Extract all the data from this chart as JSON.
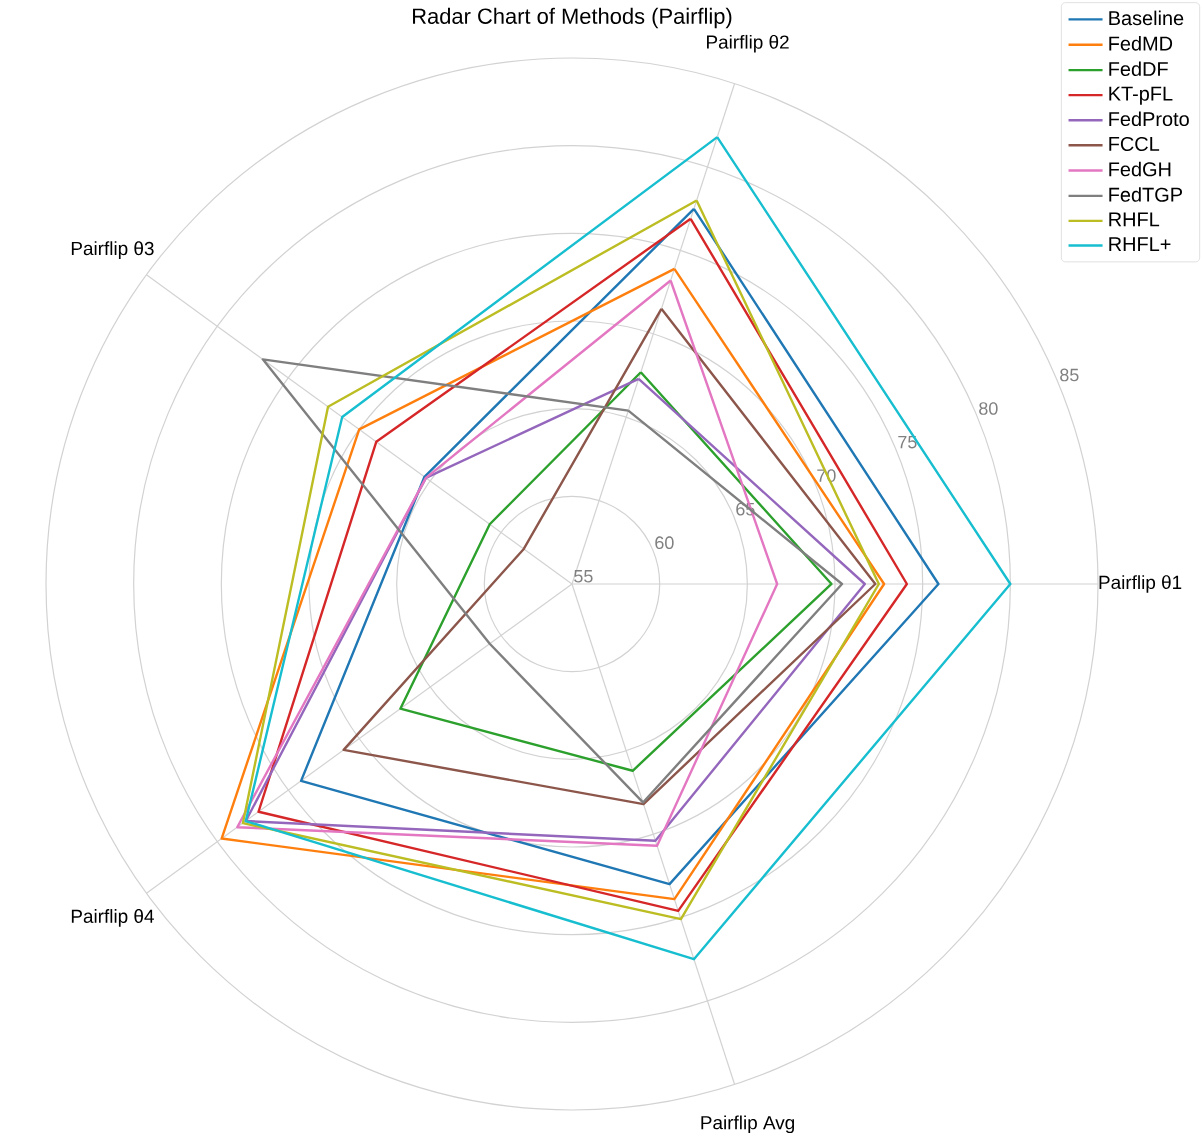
{
  "chart_data": {
    "type": "radar",
    "title": "Radar Chart of Methods (Pairflip)",
    "categories": [
      "Pairflip θ2",
      "Pairflip θ1",
      "Pairflip Avg",
      "Pairflip θ4",
      "Pairflip θ3"
    ],
    "ylim": [
      55,
      85
    ],
    "yticks": [
      55,
      60,
      65,
      70,
      75,
      80,
      85
    ],
    "grid": true,
    "legend": "top right",
    "series": [
      {
        "name": "Baseline",
        "color": "#1f77b4",
        "values": [
          77.5,
          75.9,
          73.0,
          74.1,
          65.4
        ]
      },
      {
        "name": "FedMD",
        "color": "#ff7f0e",
        "values": [
          73.9,
          72.8,
          73.9,
          79.7,
          70.0
        ]
      },
      {
        "name": "FedDF",
        "color": "#2ca02c",
        "values": [
          67.7,
          69.8,
          66.2,
          67.1,
          60.8
        ]
      },
      {
        "name": "KT-pFL",
        "color": "#d62728",
        "values": [
          76.9,
          74.1,
          74.6,
          77.1,
          68.8
        ]
      },
      {
        "name": "FedProto",
        "color": "#9467bd",
        "values": [
          67.3,
          71.7,
          70.4,
          78.0,
          65.3
        ]
      },
      {
        "name": "FCCL",
        "color": "#8c564b",
        "values": [
          71.5,
          72.3,
          68.2,
          71.1,
          58.4
        ]
      },
      {
        "name": "FedGH",
        "color": "#e377c2",
        "values": [
          73.2,
          66.7,
          70.7,
          78.6,
          65.3
        ]
      },
      {
        "name": "FedTGP",
        "color": "#7f7f7f",
        "values": [
          65.4,
          70.4,
          68.1,
          60.8,
          76.8
        ]
      },
      {
        "name": "RHFL",
        "color": "#bcbd22",
        "values": [
          78.0,
          72.5,
          75.1,
          78.2,
          72.2
        ]
      },
      {
        "name": "RHFL+",
        "color": "#17becf",
        "values": [
          81.8,
          80.0,
          77.5,
          78.0,
          71.2
        ]
      }
    ]
  }
}
